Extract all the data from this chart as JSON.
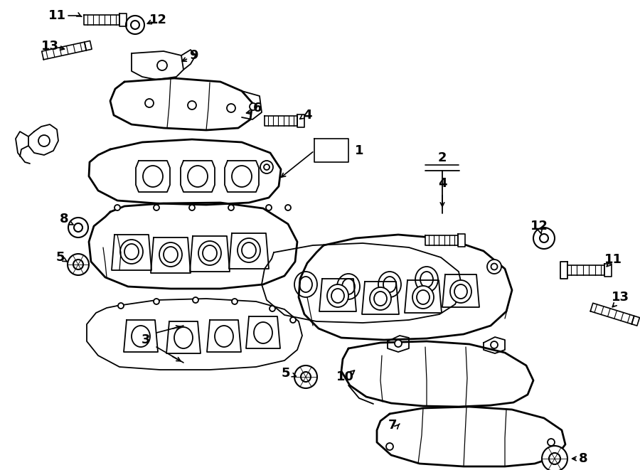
{
  "bg_color": "#ffffff",
  "line_color": "#000000",
  "lw": 1.3,
  "tlw": 2.0,
  "fig_w": 9.0,
  "fig_h": 6.61,
  "dpi": 100
}
